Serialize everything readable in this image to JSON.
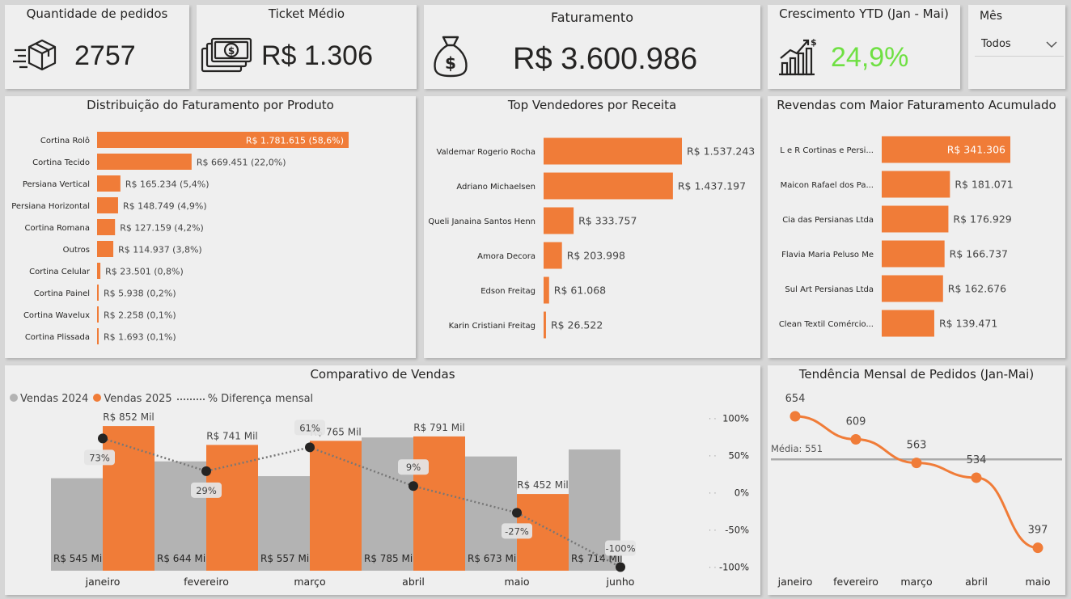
{
  "kpis": {
    "orders": {
      "title": "Quantidade de pedidos",
      "value": "2757",
      "icon": "delivery-box-icon"
    },
    "ticket": {
      "title": "Ticket Médio",
      "value": "R$ 1.306",
      "icon": "cash-icon"
    },
    "revenue": {
      "title": "Faturamento",
      "value": "R$ 3.600.986",
      "icon": "money-bag-icon"
    },
    "growth": {
      "title": "Crescimento YTD (Jan - Mai)",
      "value": "24,9%",
      "icon": "growth-chart-icon",
      "color": "#6fe043"
    }
  },
  "slicer": {
    "label": "Mês",
    "selected": "Todos"
  },
  "colors": {
    "orange": "#f07c38",
    "gray": "#b3b3b3",
    "line": "#707070",
    "dark": "#252423",
    "pct_line": "#777777"
  },
  "product_chart": {
    "title": "Distribuição do Faturamento por Produto",
    "chart_data": {
      "type": "bar",
      "orientation": "horizontal",
      "categories": [
        "Cortina Rolô",
        "Cortina Tecido",
        "Persiana Vertical",
        "Persiana Horizontal",
        "Cortina Romana",
        "Outros",
        "Cortina Celular",
        "Cortina Painel",
        "Cortina Wavelux",
        "Cortina Plissada"
      ],
      "values": [
        1781615,
        669451,
        165234,
        148749,
        127159,
        114937,
        23501,
        5938,
        2258,
        1693
      ],
      "labels": [
        "R$ 1.781.615 (58,6%)",
        "R$ 669.451 (22,0%)",
        "R$ 165.234 (5,4%)",
        "R$ 148.749 (4,9%)",
        "R$ 127.159 (4,2%)",
        "R$ 114.937 (3,8%)",
        "R$ 23.501 (0,8%)",
        "R$ 5.938 (0,2%)",
        "R$ 2.258 (0,1%)",
        "R$ 1.693 (0,1%)"
      ]
    }
  },
  "sellers_chart": {
    "title": "Top Vendedores por Receita",
    "chart_data": {
      "type": "bar",
      "orientation": "horizontal",
      "categories": [
        "Valdemar Rogerio Rocha",
        "Adriano Michaelsen",
        "Queli Janaina Santos Henn",
        "Amora Decora",
        "Edson Freitag",
        "Karin Cristiani Freitag"
      ],
      "values": [
        1537243,
        1437197,
        333757,
        203998,
        61068,
        26522
      ],
      "labels": [
        "R$ 1.537.243",
        "R$ 1.437.197",
        "R$ 333.757",
        "R$ 203.998",
        "R$ 61.068",
        "R$ 26.522"
      ]
    }
  },
  "resellers_chart": {
    "title": "Revendas com Maior Faturamento Acumulado",
    "chart_data": {
      "type": "bar",
      "orientation": "horizontal",
      "categories": [
        "L e R Cortinas e Persi...",
        "Maicon Rafael dos Pa...",
        "Cia das Persianas Ltda",
        "Flavia Maria Peluso Me",
        "Sul Art Persianas Ltda",
        "Clean Textil Comércio..."
      ],
      "values": [
        341306,
        181071,
        176929,
        166737,
        162676,
        139471
      ],
      "labels": [
        "R$ 341.306",
        "R$ 181.071",
        "R$ 176.929",
        "R$ 166.737",
        "R$ 162.676",
        "R$ 139.471"
      ]
    }
  },
  "comparison_chart": {
    "title": "Comparativo de Vendas",
    "legend": {
      "s2024": "Vendas 2024",
      "s2025": "Vendas 2025",
      "pct": "% Diferença mensal"
    },
    "chart_data": {
      "type": "bar",
      "categories": [
        "janeiro",
        "fevereiro",
        "março",
        "abril",
        "maio",
        "junho"
      ],
      "series": [
        {
          "name": "Vendas 2024",
          "values": [
            545,
            644,
            557,
            785,
            673,
            714
          ],
          "labels": [
            "R$ 545 Mil",
            "R$ 644 Mil",
            "R$ 557 Mil",
            "R$ 785 Mil",
            "R$ 673 Mil",
            "R$ 714 Mil"
          ]
        },
        {
          "name": "Vendas 2025",
          "values": [
            852,
            741,
            765,
            791,
            452,
            null
          ],
          "labels": [
            "R$ 852 Mil",
            "R$ 741 Mil",
            "R$ 765 Mil",
            "R$ 791 Mil",
            "R$ 452 Mil",
            ""
          ]
        },
        {
          "name": "% Diferença mensal",
          "type": "line",
          "values": [
            73,
            29,
            61,
            9,
            -27,
            -100
          ],
          "labels": [
            "73%",
            "29%",
            "61%",
            "9%",
            "-27%",
            "-100%"
          ]
        }
      ],
      "y2_ticks": [
        "100%",
        "50%",
        "0%",
        "-50%",
        "-100%"
      ],
      "y2_values": [
        100,
        50,
        0,
        -50,
        -100
      ],
      "y_range": [
        0,
        900
      ],
      "y2_range": [
        -100,
        100
      ]
    }
  },
  "trend_chart": {
    "title": "Tendência Mensal de Pedidos (Jan-Mai)",
    "chart_data": {
      "type": "line",
      "categories": [
        "janeiro",
        "fevereiro",
        "março",
        "abril",
        "maio"
      ],
      "values": [
        654,
        609,
        563,
        534,
        397
      ],
      "labels": [
        "654",
        "609",
        "563",
        "534",
        "397"
      ],
      "average": 551,
      "average_label": "Média: 551",
      "y_range": [
        350,
        680
      ]
    }
  }
}
